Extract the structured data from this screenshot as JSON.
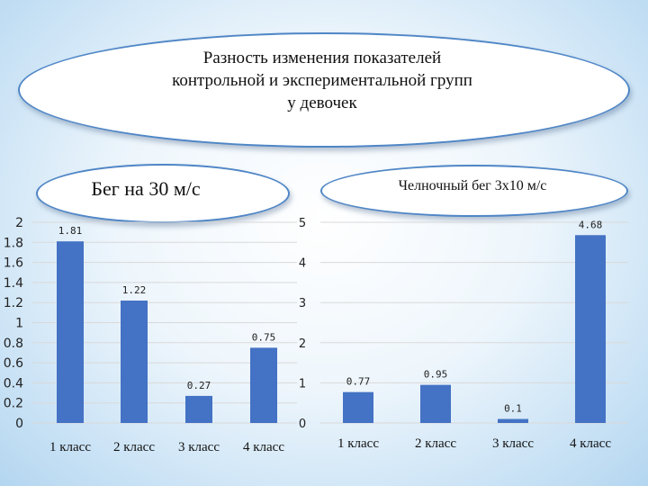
{
  "header": {
    "title": "Разность изменения показателей\nконтрольной и  экспериментальной групп\nу девочек"
  },
  "colors": {
    "bar": "#4472c4",
    "grid": "#d9d9d9",
    "bubble_border": "#4f86c6"
  },
  "chart_data": [
    {
      "type": "bar",
      "title": "Бег на 30 м/с",
      "categories": [
        "1 класс",
        "2 класс",
        "3 класс",
        "4 класс"
      ],
      "values": [
        1.81,
        1.22,
        0.27,
        0.75
      ],
      "value_labels": [
        "1.81",
        "1.22",
        "0.27",
        "0.75"
      ],
      "ylim": [
        0,
        2
      ],
      "y_ticks": [
        "0",
        "0.2",
        "0.4",
        "0.6",
        "0.8",
        "1",
        "1.2",
        "1.4",
        "1.6",
        "1.8",
        "2"
      ],
      "grid": true
    },
    {
      "type": "bar",
      "title": "Челночный бег 3х10 м/с",
      "categories": [
        "1 класс",
        "2 класс",
        "3 класс",
        "4 класс"
      ],
      "values": [
        0.77,
        0.95,
        0.1,
        4.68
      ],
      "value_labels": [
        "0.77",
        "0.95",
        "0.1",
        "4.68"
      ],
      "ylim": [
        0,
        5
      ],
      "y_ticks": [
        "0",
        "1",
        "2",
        "3",
        "4",
        "5"
      ],
      "grid": true
    }
  ]
}
